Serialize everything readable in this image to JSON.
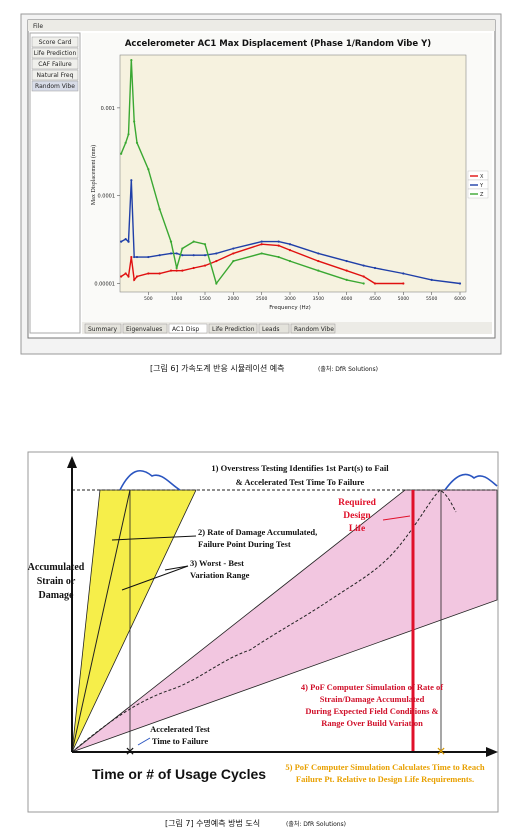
{
  "figure1": {
    "window": {
      "menu": "File",
      "sidebar": [
        "Score Card",
        "Life Prediction",
        "CAF Failure",
        "Natural Freq",
        "Random Vibe"
      ],
      "tabs": [
        "Summary",
        "Eigenvalues",
        "AC1 Disp",
        "Life Prediction",
        "Leads",
        "Random Vibe"
      ]
    },
    "chart_data": {
      "type": "line",
      "title": "Accelerometer AC1 Max Displacement (Phase 1/Random Vibe Y)",
      "x_label": "Frequency (Hz)",
      "y_label": "Max Displacement (mm)",
      "log_y": true,
      "legend": "right",
      "x": [
        20,
        100,
        150,
        200,
        250,
        300,
        500,
        700,
        900,
        1000,
        1100,
        1300,
        1500,
        1700,
        2000,
        2500,
        2800,
        3000,
        3500,
        4000,
        4300,
        4500,
        5000,
        5500,
        6000
      ],
      "series": [
        {
          "name": "X",
          "color": "#e01010",
          "values": [
            1.2e-05,
            1.3e-05,
            1.2e-05,
            2e-05,
            1.1e-05,
            1.2e-05,
            1.3e-05,
            1.3e-05,
            1.4e-05,
            1.4e-05,
            1.4e-05,
            1.5e-05,
            1.6e-05,
            1.8e-05,
            2.2e-05,
            2.8e-05,
            2.7e-05,
            2.4e-05,
            1.8e-05,
            1.4e-05,
            1.2e-05,
            1e-05,
            1e-05,
            null,
            null
          ]
        },
        {
          "name": "Y",
          "color": "#1f3fa8",
          "values": [
            3e-05,
            3.2e-05,
            3e-05,
            0.00015,
            2e-05,
            2e-05,
            2e-05,
            2.1e-05,
            2.2e-05,
            2.2e-05,
            2.1e-05,
            2.1e-05,
            2.1e-05,
            2.2e-05,
            2.5e-05,
            3e-05,
            3e-05,
            2.8e-05,
            2.2e-05,
            1.8e-05,
            1.6e-05,
            1.5e-05,
            1.3e-05,
            1.1e-05,
            1e-05
          ]
        },
        {
          "name": "Z",
          "color": "#3aa832",
          "values": [
            0.0003,
            0.0004,
            0.0005,
            0.0035,
            0.0007,
            0.0004,
            0.0002,
            7e-05,
            3e-05,
            1.5e-05,
            2.5e-05,
            3e-05,
            2.8e-05,
            1e-05,
            1.8e-05,
            2.2e-05,
            2e-05,
            1.8e-05,
            1.4e-05,
            1.1e-05,
            1e-05,
            null,
            null,
            null,
            null
          ]
        }
      ],
      "xlim": [
        0,
        6000
      ],
      "xticks": [
        500,
        1000,
        1500,
        2000,
        2500,
        3000,
        3500,
        4000,
        4500,
        5000,
        5500,
        6000
      ],
      "ylim": [
        8e-06,
        0.004
      ],
      "yticks": [
        {
          "value": 1e-05,
          "label": "0.00001"
        },
        {
          "value": 0.0001,
          "label": "0.0001"
        },
        {
          "value": 0.001,
          "label": "0.001"
        }
      ]
    },
    "caption": "[그림 6] 가속도계 반응 시뮬레이션 예측",
    "source": "(출처: DfR Solutions)"
  },
  "figure2": {
    "label1": [
      "1) Overstress Testing Identifies 1st Part(s) to Fail",
      "& Accelerated Test Time To Failure"
    ],
    "label2": [
      "2) Rate of Damage Accumulated,",
      "Failure Point During Test"
    ],
    "label3": [
      "3) Worst - Best",
      "Variation Range"
    ],
    "y_label": [
      "Accumulated",
      "Strain or",
      "Damage"
    ],
    "design_life": [
      "Required",
      "Design",
      "Life"
    ],
    "label4": [
      "4) PoF Computer Simulation of Rate of",
      "Strain/Damage Accumulated",
      "During Expected Field Conditions &",
      "Range Over Build Variation"
    ],
    "test_time": [
      "Accelerated Test",
      "Time to Failure"
    ],
    "x_label": "Time or # of Usage Cycles",
    "label5": [
      "5) PoF Computer Simulation Calculates Time to Reach",
      "Failure Pt. Relative to Design Life Requirements."
    ],
    "caption": "[그림 7] 수명예측 방법 도식",
    "source": "(출처: DfR Solutions)"
  }
}
